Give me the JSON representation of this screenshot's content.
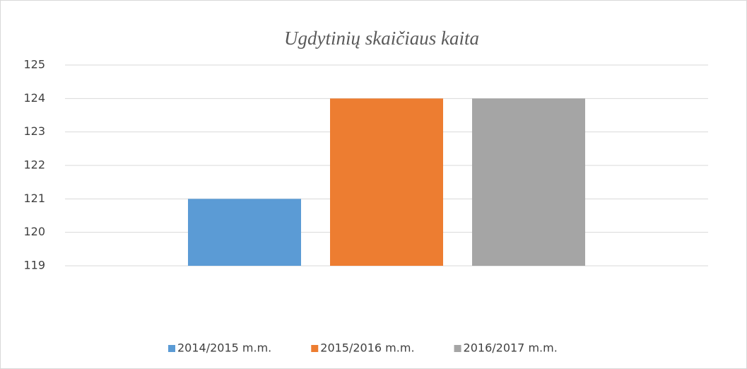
{
  "chart_data": {
    "type": "bar",
    "title": "Ugdytinių skaičiaus kaita",
    "series": [
      {
        "name": "2014/2015 m.m.",
        "color": "#5b9bd5",
        "values": [
          121
        ]
      },
      {
        "name": "2015/2016 m.m.",
        "color": "#ed7d31",
        "values": [
          124
        ]
      },
      {
        "name": "2016/2017 m.m.",
        "color": "#a5a5a5",
        "values": [
          124
        ]
      }
    ],
    "ylim": [
      119,
      125
    ],
    "yticks": [
      119,
      120,
      121,
      122,
      123,
      124,
      125
    ],
    "grid": true,
    "legend": "bottom"
  }
}
